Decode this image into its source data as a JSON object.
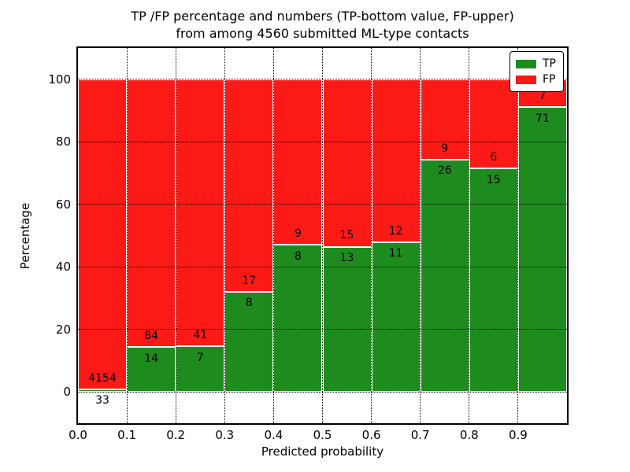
{
  "chart_data": {
    "type": "bar",
    "stacked": true,
    "title": "TP /FP percentage and numbers (TP-bottom value, FP-upper) from among 4560 submitted ML-type contacts",
    "title_line1": "TP /FP percentage and numbers (TP-bottom value, FP-upper)",
    "title_line2": "from among 4560 submitted ML-type contacts",
    "xlabel": "Predicted probability",
    "ylabel": "Percentage",
    "total_contacts": 4560,
    "bins": [
      "0.0-0.1",
      "0.1-0.2",
      "0.2-0.3",
      "0.3-0.4",
      "0.4-0.5",
      "0.5-0.6",
      "0.6-0.7",
      "0.7-0.8",
      "0.8-0.9",
      "0.9-1.0"
    ],
    "series": [
      {
        "name": "TP",
        "color": "#1e8b1e",
        "counts": [
          33,
          14,
          7,
          8,
          8,
          13,
          11,
          26,
          15,
          71
        ]
      },
      {
        "name": "FP",
        "color": "#fc1a16",
        "counts": [
          4154,
          84,
          41,
          17,
          9,
          15,
          12,
          9,
          6,
          7
        ]
      }
    ],
    "tp_percent_of_bin": [
      0.8,
      14.3,
      14.6,
      32.0,
      47.1,
      46.4,
      47.8,
      74.3,
      71.4,
      91.0
    ],
    "x_tick_labels": [
      "0.0",
      "0.1",
      "0.2",
      "0.3",
      "0.4",
      "0.5",
      "0.6",
      "0.7",
      "0.8",
      "0.9"
    ],
    "y_tick_values": [
      0,
      20,
      40,
      60,
      80,
      100
    ],
    "xlim": [
      0.0,
      1.0
    ],
    "ylim": [
      -10,
      110
    ],
    "grid": "dotted",
    "legend": {
      "position": "upper right"
    }
  }
}
